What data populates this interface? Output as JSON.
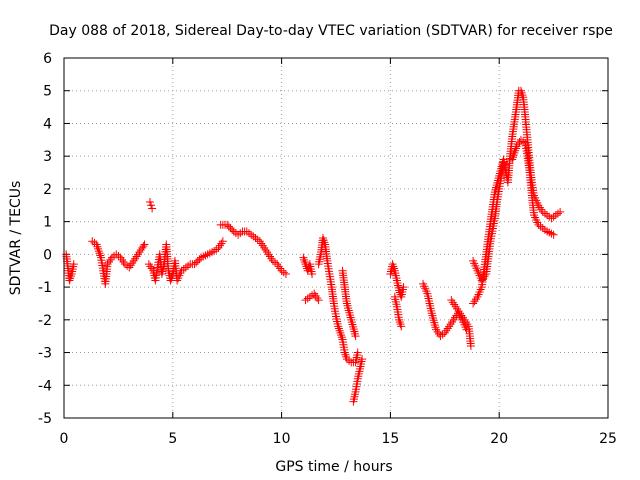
{
  "chart_data": {
    "type": "scatter",
    "title": "Day 088 of 2018, Sidereal Day-to-day VTEC variation (SDTVAR) for receiver rspe",
    "xlabel": "GPS time / hours",
    "ylabel": "SDTVAR / TECUs",
    "xlim": [
      0,
      25
    ],
    "ylim": [
      -5,
      6
    ],
    "xticks": [
      "0",
      "5",
      "10",
      "15",
      "20",
      "25"
    ],
    "yticks": [
      "-5",
      "-4",
      "-3",
      "-2",
      "-1",
      "0",
      "1",
      "2",
      "3",
      "4",
      "5",
      "6"
    ],
    "grid": true,
    "marker": "+",
    "color": "#ff0000",
    "series": [
      {
        "name": "SDTVAR",
        "segments": [
          [
            [
              0.1,
              0.0
            ],
            [
              0.2,
              -0.5
            ],
            [
              0.25,
              -0.8
            ],
            [
              0.35,
              -0.6
            ],
            [
              0.45,
              -0.3
            ]
          ],
          [
            [
              1.3,
              0.4
            ],
            [
              1.5,
              0.3
            ],
            [
              1.7,
              -0.1
            ],
            [
              1.8,
              -0.5
            ],
            [
              1.9,
              -0.9
            ],
            [
              2.0,
              -0.3
            ],
            [
              2.2,
              -0.1
            ],
            [
              2.4,
              0.0
            ],
            [
              2.6,
              -0.1
            ],
            [
              2.8,
              -0.3
            ],
            [
              3.0,
              -0.4
            ],
            [
              3.2,
              -0.2
            ],
            [
              3.4,
              0.0
            ],
            [
              3.6,
              0.2
            ],
            [
              3.7,
              0.3
            ]
          ],
          [
            [
              3.95,
              1.6
            ],
            [
              4.0,
              1.5
            ],
            [
              4.05,
              1.4
            ]
          ],
          [
            [
              3.9,
              -0.3
            ],
            [
              4.1,
              -0.5
            ],
            [
              4.2,
              -0.8
            ],
            [
              4.3,
              -0.4
            ],
            [
              4.4,
              0.0
            ],
            [
              4.5,
              -0.6
            ],
            [
              4.6,
              -0.3
            ],
            [
              4.7,
              0.3
            ],
            [
              4.8,
              -0.5
            ],
            [
              4.9,
              -0.8
            ],
            [
              5.0,
              -0.6
            ],
            [
              5.1,
              -0.2
            ],
            [
              5.2,
              -0.8
            ],
            [
              5.4,
              -0.5
            ],
            [
              5.6,
              -0.4
            ],
            [
              5.8,
              -0.3
            ],
            [
              6.0,
              -0.3
            ],
            [
              6.3,
              -0.1
            ],
            [
              6.6,
              0.0
            ],
            [
              6.9,
              0.1
            ],
            [
              7.1,
              0.2
            ],
            [
              7.3,
              0.4
            ]
          ],
          [
            [
              7.2,
              0.9
            ],
            [
              7.5,
              0.9
            ],
            [
              7.8,
              0.7
            ],
            [
              8.0,
              0.6
            ],
            [
              8.2,
              0.7
            ],
            [
              8.4,
              0.7
            ],
            [
              8.6,
              0.6
            ],
            [
              8.8,
              0.5
            ],
            [
              9.0,
              0.4
            ],
            [
              9.2,
              0.2
            ],
            [
              9.4,
              0.0
            ],
            [
              9.6,
              -0.2
            ],
            [
              9.8,
              -0.3
            ],
            [
              10.0,
              -0.5
            ],
            [
              10.2,
              -0.6
            ]
          ],
          [
            [
              11.0,
              -0.1
            ],
            [
              11.1,
              -0.3
            ],
            [
              11.2,
              -0.5
            ],
            [
              11.3,
              -0.3
            ],
            [
              11.4,
              -0.6
            ]
          ],
          [
            [
              11.1,
              -1.4
            ],
            [
              11.3,
              -1.3
            ],
            [
              11.5,
              -1.2
            ],
            [
              11.7,
              -1.4
            ]
          ],
          [
            [
              11.7,
              -0.3
            ],
            [
              11.8,
              0.0
            ],
            [
              11.9,
              0.5
            ],
            [
              12.0,
              0.3
            ],
            [
              12.1,
              -0.2
            ],
            [
              12.2,
              -0.6
            ],
            [
              12.3,
              -1.0
            ],
            [
              12.4,
              -1.5
            ],
            [
              12.5,
              -1.9
            ],
            [
              12.6,
              -2.2
            ],
            [
              12.7,
              -2.4
            ],
            [
              12.8,
              -2.6
            ],
            [
              12.9,
              -3.0
            ],
            [
              13.0,
              -3.2
            ],
            [
              13.2,
              -3.3
            ],
            [
              13.4,
              -3.3
            ],
            [
              13.5,
              -3.0
            ]
          ],
          [
            [
              12.8,
              -0.5
            ],
            [
              12.9,
              -1.0
            ],
            [
              13.0,
              -1.5
            ],
            [
              13.2,
              -2.0
            ],
            [
              13.4,
              -2.5
            ]
          ],
          [
            [
              13.3,
              -4.5
            ],
            [
              13.4,
              -4.2
            ],
            [
              13.5,
              -3.8
            ],
            [
              13.6,
              -3.5
            ],
            [
              13.7,
              -3.2
            ]
          ],
          [
            [
              15.0,
              -0.6
            ],
            [
              15.1,
              -0.3
            ],
            [
              15.2,
              -0.5
            ],
            [
              15.3,
              -0.8
            ],
            [
              15.4,
              -1.1
            ],
            [
              15.5,
              -1.3
            ],
            [
              15.6,
              -1.0
            ]
          ],
          [
            [
              15.2,
              -1.3
            ],
            [
              15.3,
              -1.6
            ],
            [
              15.4,
              -2.0
            ],
            [
              15.5,
              -2.2
            ]
          ],
          [
            [
              16.5,
              -0.9
            ],
            [
              16.7,
              -1.2
            ],
            [
              16.9,
              -1.8
            ],
            [
              17.1,
              -2.3
            ],
            [
              17.3,
              -2.5
            ],
            [
              17.5,
              -2.4
            ],
            [
              17.7,
              -2.2
            ],
            [
              17.9,
              -2.0
            ],
            [
              18.1,
              -1.8
            ],
            [
              18.3,
              -2.0
            ],
            [
              18.5,
              -2.3
            ]
          ],
          [
            [
              17.8,
              -1.4
            ],
            [
              18.0,
              -1.6
            ],
            [
              18.2,
              -1.8
            ],
            [
              18.4,
              -2.0
            ],
            [
              18.6,
              -2.2
            ],
            [
              18.7,
              -2.8
            ]
          ],
          [
            [
              18.8,
              -0.2
            ],
            [
              19.0,
              -0.5
            ],
            [
              19.2,
              -0.8
            ],
            [
              19.4,
              -0.6
            ],
            [
              19.6,
              0.4
            ],
            [
              19.8,
              1.1
            ],
            [
              19.9,
              1.6
            ],
            [
              20.0,
              2.0
            ],
            [
              20.1,
              2.4
            ],
            [
              20.2,
              2.8
            ]
          ],
          [
            [
              18.8,
              -1.5
            ],
            [
              19.0,
              -1.3
            ],
            [
              19.2,
              -1.0
            ],
            [
              19.4,
              0.0
            ],
            [
              19.6,
              1.0
            ],
            [
              19.8,
              1.9
            ],
            [
              20.0,
              2.4
            ],
            [
              20.2,
              2.9
            ],
            [
              20.4,
              2.2
            ],
            [
              20.5,
              3.0
            ],
            [
              20.6,
              3.6
            ],
            [
              20.8,
              4.5
            ],
            [
              20.9,
              5.0
            ],
            [
              21.0,
              5.0
            ],
            [
              21.1,
              4.8
            ],
            [
              21.2,
              4.2
            ],
            [
              21.3,
              3.5
            ],
            [
              21.4,
              2.8
            ],
            [
              21.5,
              2.2
            ],
            [
              21.6,
              1.8
            ],
            [
              21.8,
              1.5
            ],
            [
              22.0,
              1.3
            ],
            [
              22.2,
              1.2
            ],
            [
              22.4,
              1.1
            ],
            [
              22.6,
              1.2
            ],
            [
              22.8,
              1.3
            ]
          ],
          [
            [
              20.6,
              2.9
            ],
            [
              20.8,
              3.3
            ],
            [
              21.0,
              3.5
            ],
            [
              21.2,
              3.4
            ],
            [
              21.3,
              3.0
            ],
            [
              21.4,
              2.5
            ],
            [
              21.5,
              1.8
            ],
            [
              21.6,
              1.2
            ],
            [
              21.8,
              0.9
            ],
            [
              22.0,
              0.8
            ],
            [
              22.2,
              0.7
            ],
            [
              22.5,
              0.6
            ]
          ]
        ]
      }
    ]
  }
}
